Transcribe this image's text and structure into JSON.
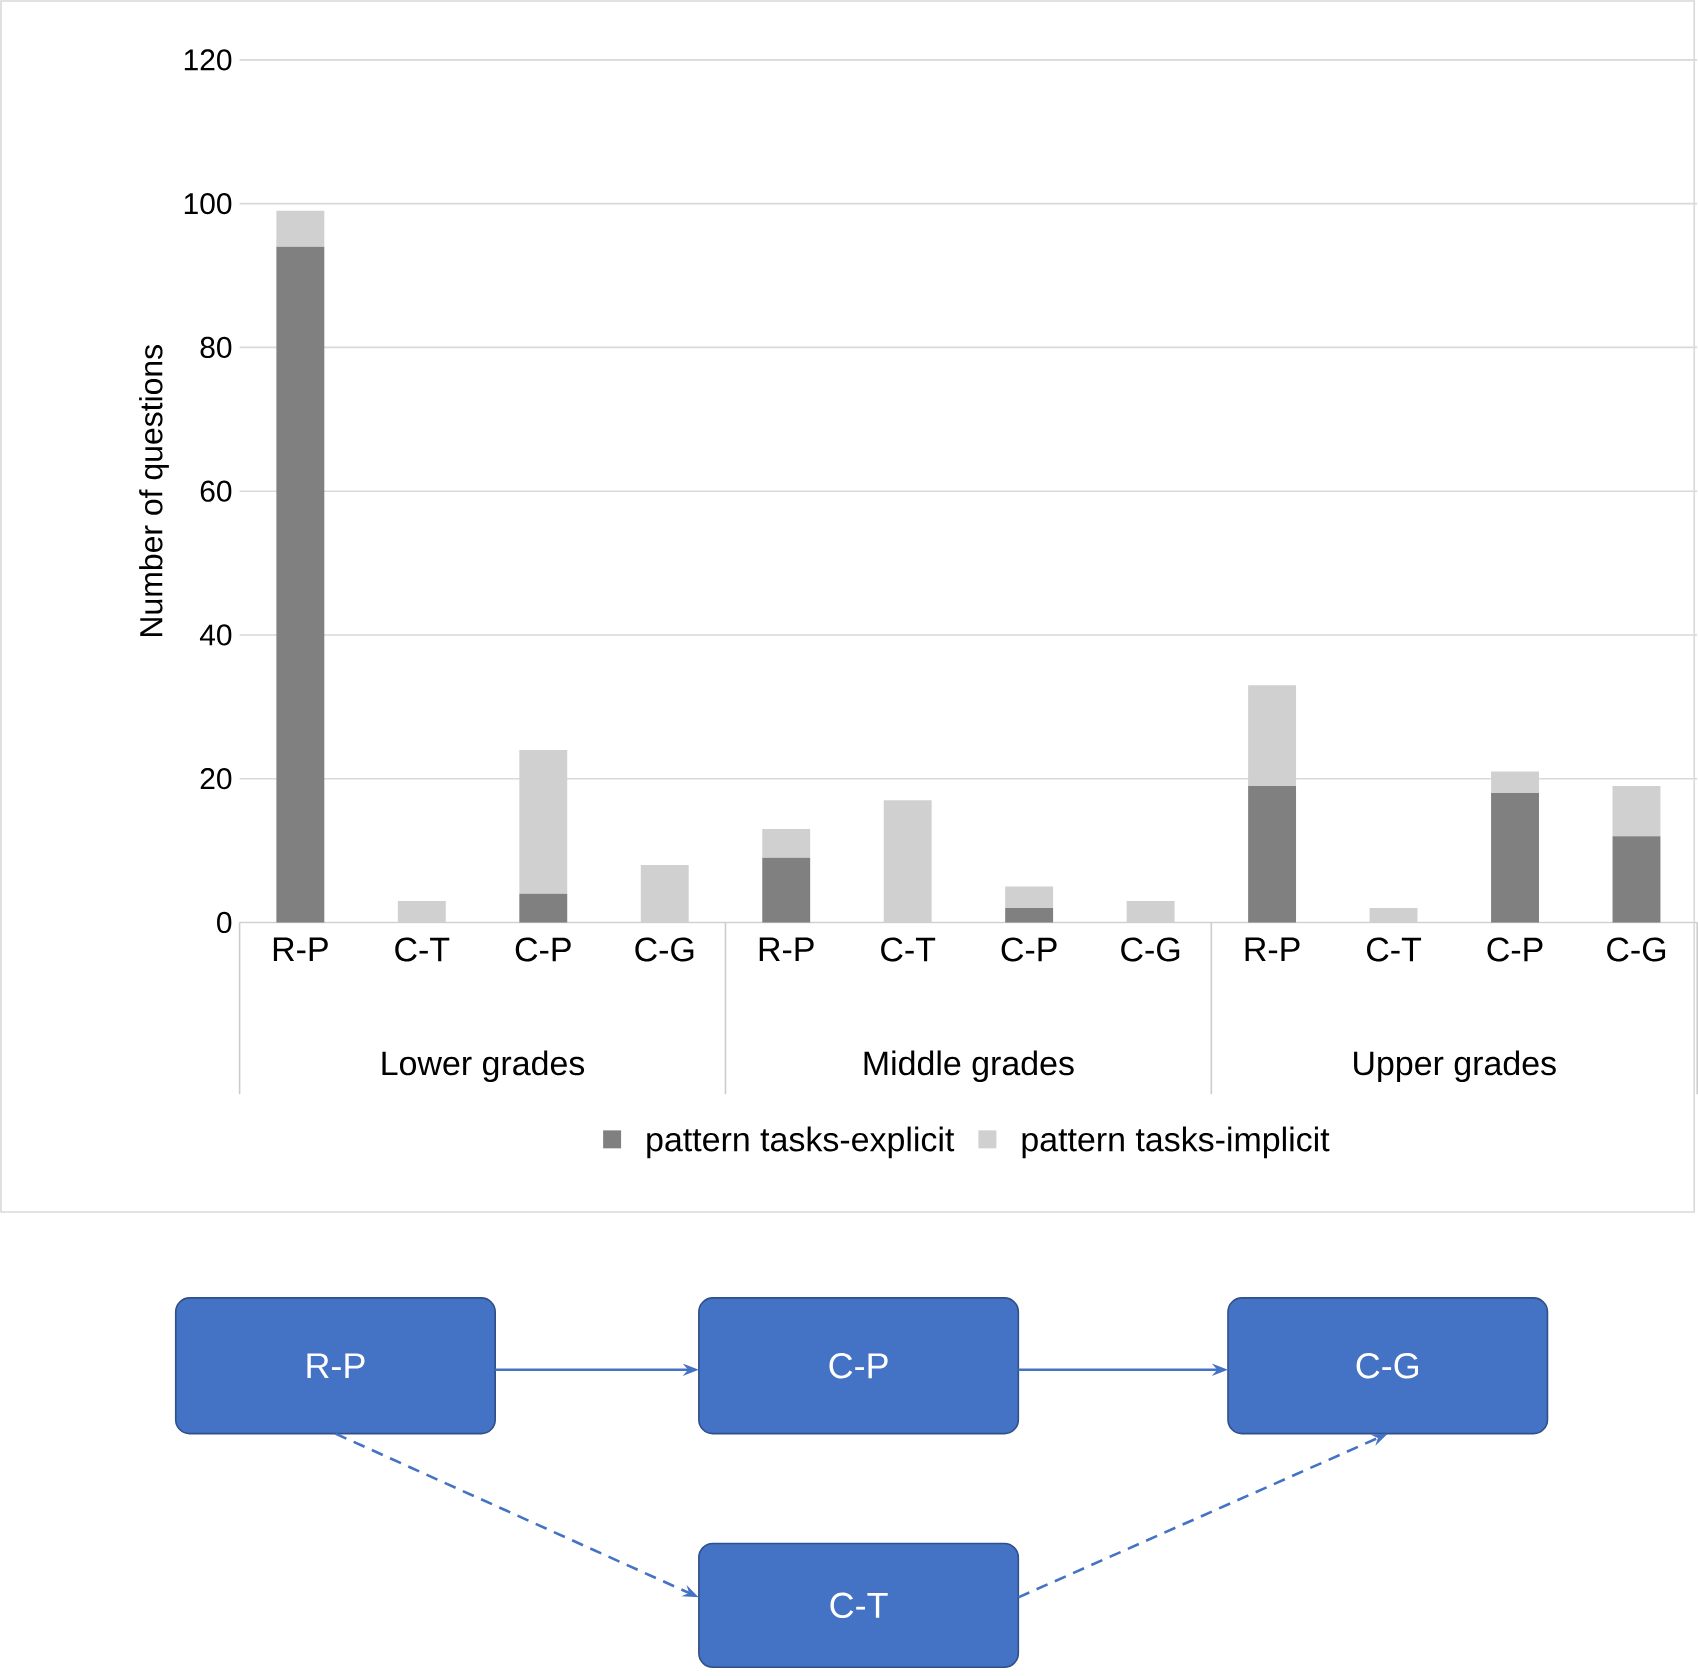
{
  "chart_data": [
    {
      "type": "bar",
      "stacked": true,
      "ylabel": "Number of questions",
      "categories": [
        "R-P",
        "C-T",
        "C-P",
        "C-G",
        "R-P",
        "C-T",
        "C-P",
        "C-G",
        "R-P",
        "C-T",
        "C-P",
        "C-G"
      ],
      "annotations": [
        "Lower grades",
        "Middle grades",
        "Upper grades"
      ],
      "series": [
        {
          "name": "pattern tasks-explicit",
          "color": "#808080",
          "values": [
            94,
            0,
            4,
            0,
            9,
            0,
            2,
            0,
            19,
            0,
            18,
            12
          ]
        },
        {
          "name": "pattern tasks-implicit",
          "color": "#d0d0d0",
          "values": [
            5,
            3,
            20,
            8,
            4,
            17,
            3,
            3,
            14,
            2,
            3,
            7
          ]
        }
      ],
      "ylim": [
        0,
        120
      ],
      "yticks": [
        0,
        20,
        40,
        60,
        80,
        100,
        120
      ],
      "grid": "y",
      "legend": "bottom"
    },
    {
      "type": "other",
      "annotations": [
        "R-P",
        "C-P",
        "C-G",
        "C-T"
      ],
      "color": "#4472c4"
    }
  ]
}
